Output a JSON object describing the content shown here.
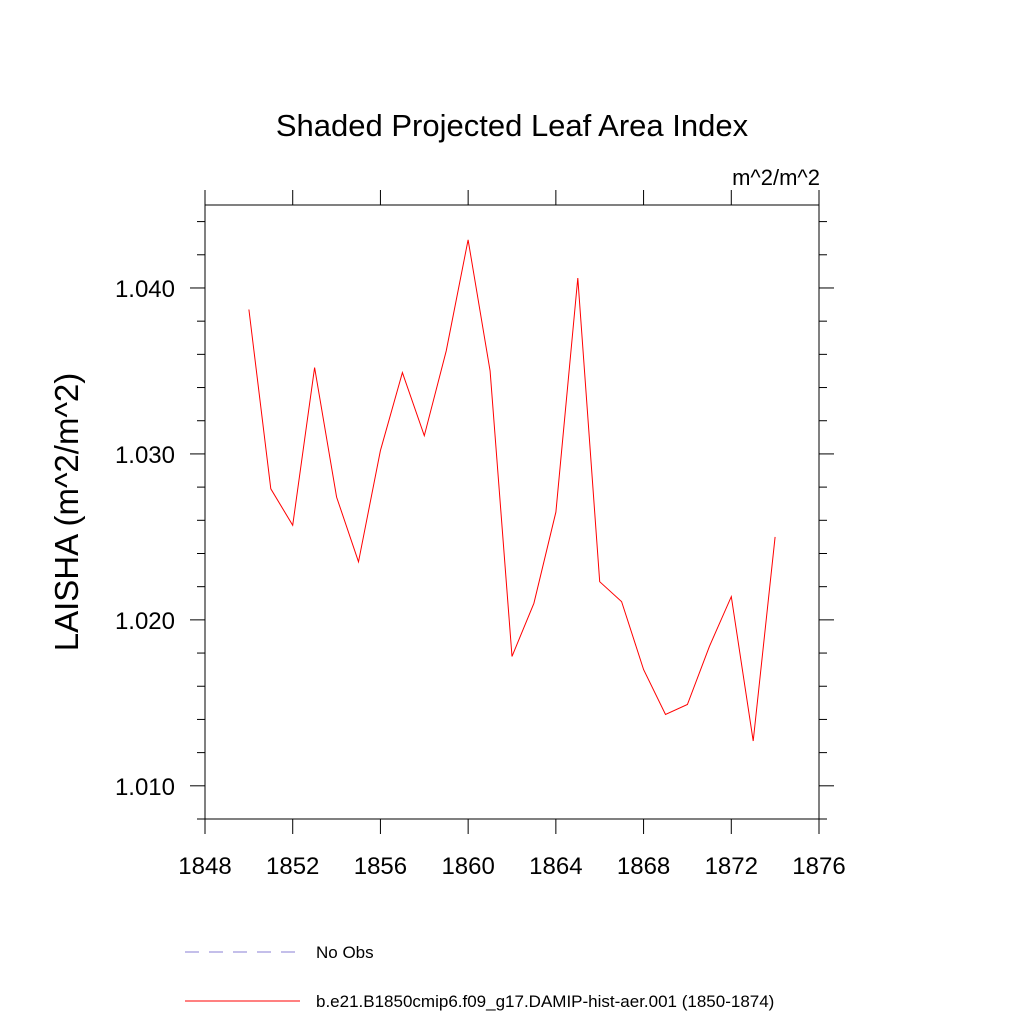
{
  "chart_data": {
    "type": "line",
    "title": "Shaded Projected Leaf Area Index",
    "units_label": "m^2/m^2",
    "ylabel": "LAISHA  (m^2/m^2)",
    "xlabel": "",
    "xlim": [
      1848,
      1876
    ],
    "ylim": [
      1.008,
      1.045
    ],
    "x_ticks": [
      1848,
      1852,
      1856,
      1860,
      1864,
      1868,
      1872,
      1876
    ],
    "x_tick_labels": [
      "1848",
      "1852",
      "1856",
      "1860",
      "1864",
      "1868",
      "1872",
      "1876"
    ],
    "y_ticks": [
      1.01,
      1.02,
      1.03,
      1.04
    ],
    "y_tick_labels": [
      "1.010",
      "1.020",
      "1.030",
      "1.040"
    ],
    "grid": false,
    "legend_position": "bottom",
    "series": [
      {
        "name": "b.e21.B1850cmip6.f09_g17.DAMIP-hist-aer.001 (1850-1874)",
        "color": "#ff0000",
        "style": "solid",
        "x": [
          1850,
          1851,
          1852,
          1853,
          1854,
          1855,
          1856,
          1857,
          1858,
          1859,
          1860,
          1861,
          1862,
          1863,
          1864,
          1865,
          1866,
          1867,
          1868,
          1869,
          1870,
          1871,
          1872,
          1873,
          1874
        ],
        "y": [
          1.0387,
          1.0279,
          1.0257,
          1.0352,
          1.0274,
          1.0235,
          1.0302,
          1.0349,
          1.0311,
          1.0362,
          1.0429,
          1.035,
          1.0178,
          1.021,
          1.0265,
          1.0406,
          1.0223,
          1.0211,
          1.017,
          1.0143,
          1.0149,
          1.0184,
          1.0214,
          1.0127,
          1.025
        ]
      },
      {
        "name": "No Obs",
        "color": "#8a7fd6",
        "style": "dashed",
        "x": [],
        "y": []
      }
    ]
  }
}
